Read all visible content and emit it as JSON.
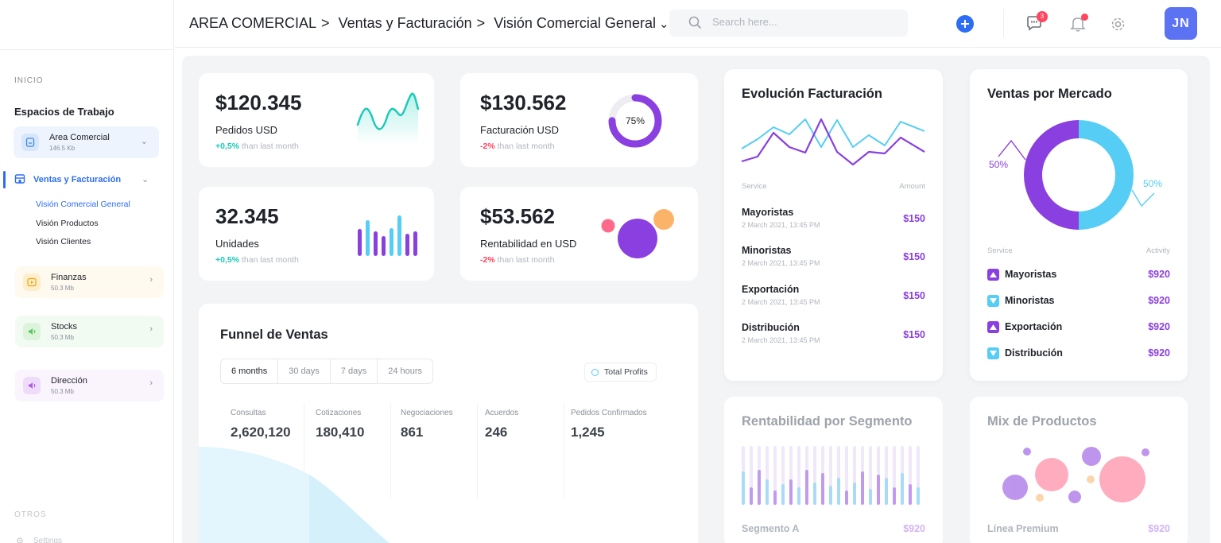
{
  "sidebar": {
    "section_inicio": "INICIO",
    "workspaces_heading": "Espacios de Trabajo",
    "workspace_current": {
      "name": "Area Comercial",
      "size": "146.5 Kb"
    },
    "active_nav": "Ventas y Facturación",
    "subnav": [
      "Visión Comercial General",
      "Visión Productos",
      "Visión Clientes"
    ],
    "workspaces": [
      {
        "name": "Finanzas",
        "size": "50.3 Mb"
      },
      {
        "name": "Stocks",
        "size": "50.3 Mb"
      },
      {
        "name": "Dirección",
        "size": "50.3 Mb"
      }
    ],
    "section_otros": "OTROS",
    "settings_label": "Settings"
  },
  "header": {
    "crumb1": "AREA COMERCIAL",
    "crumb2": "Ventas y Facturación",
    "crumb3": "Visión Comercial General",
    "separator": ">",
    "search_placeholder": "Search here...",
    "messages_count": "3",
    "avatar_initials": "JN"
  },
  "kpis": [
    {
      "value": "$120.345",
      "label": "Pedidos USD",
      "delta": "+0,5%",
      "delta_text": "than last month"
    },
    {
      "value": "$130.562",
      "label": "Facturación USD",
      "delta": "-2%",
      "delta_text": "than last month",
      "ring_label": "75%",
      "ring_fraction": 0.75
    },
    {
      "value": "32.345",
      "label": "Unidades",
      "delta": "+0,5%",
      "delta_text": "than last month"
    },
    {
      "value": "$53.562",
      "label": "Rentabilidad en USD",
      "delta": "-2%",
      "delta_text": "than last month"
    }
  ],
  "evolucion": {
    "title": "Evolución Facturación",
    "col_service": "Service",
    "col_amount": "Amount",
    "rows": [
      {
        "name": "Mayoristas",
        "date": "2 March 2021, 13:45 PM",
        "amount": "$150"
      },
      {
        "name": "Minoristas",
        "date": "2 March 2021, 13:45 PM",
        "amount": "$150"
      },
      {
        "name": "Exportación",
        "date": "2 March 2021, 13:45 PM",
        "amount": "$150"
      },
      {
        "name": "Distribución",
        "date": "2 March 2021, 13:45 PM",
        "amount": "$150"
      }
    ]
  },
  "mercado": {
    "title": "Ventas por Mercado",
    "left_pct": "50%",
    "right_pct": "50%",
    "col_service": "Service",
    "col_activity": "Activity",
    "rows": [
      {
        "name": "Mayoristas",
        "amount": "$920",
        "color": "#8a3fe0",
        "dir": "up"
      },
      {
        "name": "Minoristas",
        "amount": "$920",
        "color": "#55cdf4",
        "dir": "down"
      },
      {
        "name": "Exportación",
        "amount": "$920",
        "color": "#8a3fe0",
        "dir": "up"
      },
      {
        "name": "Distribución",
        "amount": "$920",
        "color": "#55cdf4",
        "dir": "down"
      }
    ]
  },
  "funnel": {
    "title": "Funnel de Ventas",
    "tabs": [
      "6 months",
      "30 days",
      "7 days",
      "24 hours"
    ],
    "legend": "Total Profits",
    "stages": [
      {
        "name": "Consultas",
        "value": "2,620,120"
      },
      {
        "name": "Cotizaciones",
        "value": "180,410"
      },
      {
        "name": "Negociaciones",
        "value": "861"
      },
      {
        "name": "Acuerdos",
        "value": "246"
      },
      {
        "name": "Pedidos Confirmados",
        "value": "1,245"
      }
    ]
  },
  "rentabilidad": {
    "title": "Rentabilidad por Segmento",
    "first_row": "Segmento A",
    "first_val": "$920"
  },
  "mix": {
    "title": "Mix de Productos",
    "first_row": "Línea Premium",
    "first_val": "$920"
  },
  "colors": {
    "purple": "#8a3fe0",
    "cyan": "#55cdf4",
    "blue": "#2d6df6",
    "green": "#1ccab8",
    "red": "#ff4560"
  }
}
